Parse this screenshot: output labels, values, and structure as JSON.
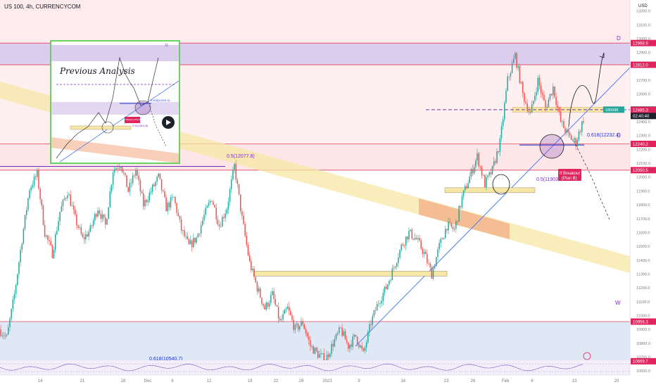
{
  "header": {
    "symbol": "US 100, 4h, CURRENCYCOM"
  },
  "axis": {
    "currency": "USD"
  },
  "colors": {
    "up": "#26a69a",
    "down": "#ef5350",
    "zone_purple": "#d6c8ec",
    "zone_pink": "#fde3e6",
    "zone_blue": "#d7e3f4",
    "channel_yellow": "#f7e7a6",
    "channel_orange": "#f3b08a",
    "trendline_blue": "#4d7ef0",
    "level_red": "#e0455f",
    "inset_border": "#3fcf3f"
  },
  "chart_data": {
    "type": "candlestick",
    "y_scale": "linear",
    "ylim": [
      10570,
      13280
    ],
    "x_ticks": [
      "14",
      "21",
      "28",
      "Dec",
      "6",
      "12",
      "19",
      "22",
      "28",
      "2023",
      "9",
      "16",
      "23",
      "26",
      "Feb",
      "6",
      "13",
      "20"
    ],
    "y_ticks": [
      13200,
      13100,
      13000,
      12900,
      12800,
      12700,
      12600,
      12500,
      12400,
      12300,
      12200,
      12100,
      12000,
      11900,
      11800,
      11700,
      11600,
      11500,
      11400,
      11300,
      11200,
      11100,
      11000,
      10900,
      10800,
      10700,
      10600
    ],
    "price_path": [
      10900,
      10840,
      11150,
      11550,
      11920,
      12020,
      11600,
      11450,
      11750,
      11900,
      11700,
      11550,
      11620,
      11780,
      11650,
      12050,
      12100,
      11900,
      12050,
      11800,
      11900,
      12000,
      11780,
      11850,
      11620,
      11500,
      11560,
      11720,
      11850,
      11650,
      11780,
      12080,
      11700,
      11380,
      11200,
      11050,
      11150,
      10950,
      11050,
      10900,
      10950,
      10780,
      10720,
      10680,
      10800,
      10900,
      10780,
      10850,
      10720,
      10950,
      11100,
      11200,
      11350,
      11500,
      11600,
      11550,
      11450,
      11300,
      11500,
      11650,
      11620,
      11850,
      12000,
      12150,
      11950,
      12050,
      12250,
      12700,
      12880,
      12600,
      12450,
      12700,
      12500,
      12650,
      12400,
      12300,
      12250,
      12420
    ],
    "price_labels": [
      {
        "label": "12968.9",
        "value": 12968.9,
        "kind": "zone"
      },
      {
        "label": "12812.0",
        "value": 12812.0,
        "kind": "zone"
      },
      {
        "label": "12487.7",
        "value": 12487.7,
        "kind": "dark"
      },
      {
        "label": "12485.3",
        "value": 12485.3,
        "kind": "zone"
      },
      {
        "label": "12240.2",
        "value": 12240.2,
        "kind": "zone"
      },
      {
        "label": "12050.5",
        "value": 12050.5,
        "kind": "zone"
      },
      {
        "label": "10956.3",
        "value": 10956.3,
        "kind": "zone"
      },
      {
        "label": "10669.7",
        "value": 10669.7,
        "kind": "zone"
      }
    ],
    "countdown": "02:40:40",
    "crosshair_label": "185998",
    "annotations": {
      "fib_618_upper": "0.618(12232.4)",
      "fib_5_mid": "0.5(12077.8)",
      "fib_5_right": "0.5(11903.",
      "fib_618_lower": "0.618(10540.7)",
      "breakout_line1": "If Breakout",
      "breakout_line2": "(Plan B)",
      "wave_d_top": "D",
      "wave_d_mid": "D",
      "wave_w": "W",
      "inset_title": "Previous Analysis",
      "inset_fib": "0.618(12224.0)",
      "inset_d": "D",
      "inset_breakout": "If Breakout (Plan B)",
      "inset_fib2": "0.5(11902.8)"
    }
  }
}
